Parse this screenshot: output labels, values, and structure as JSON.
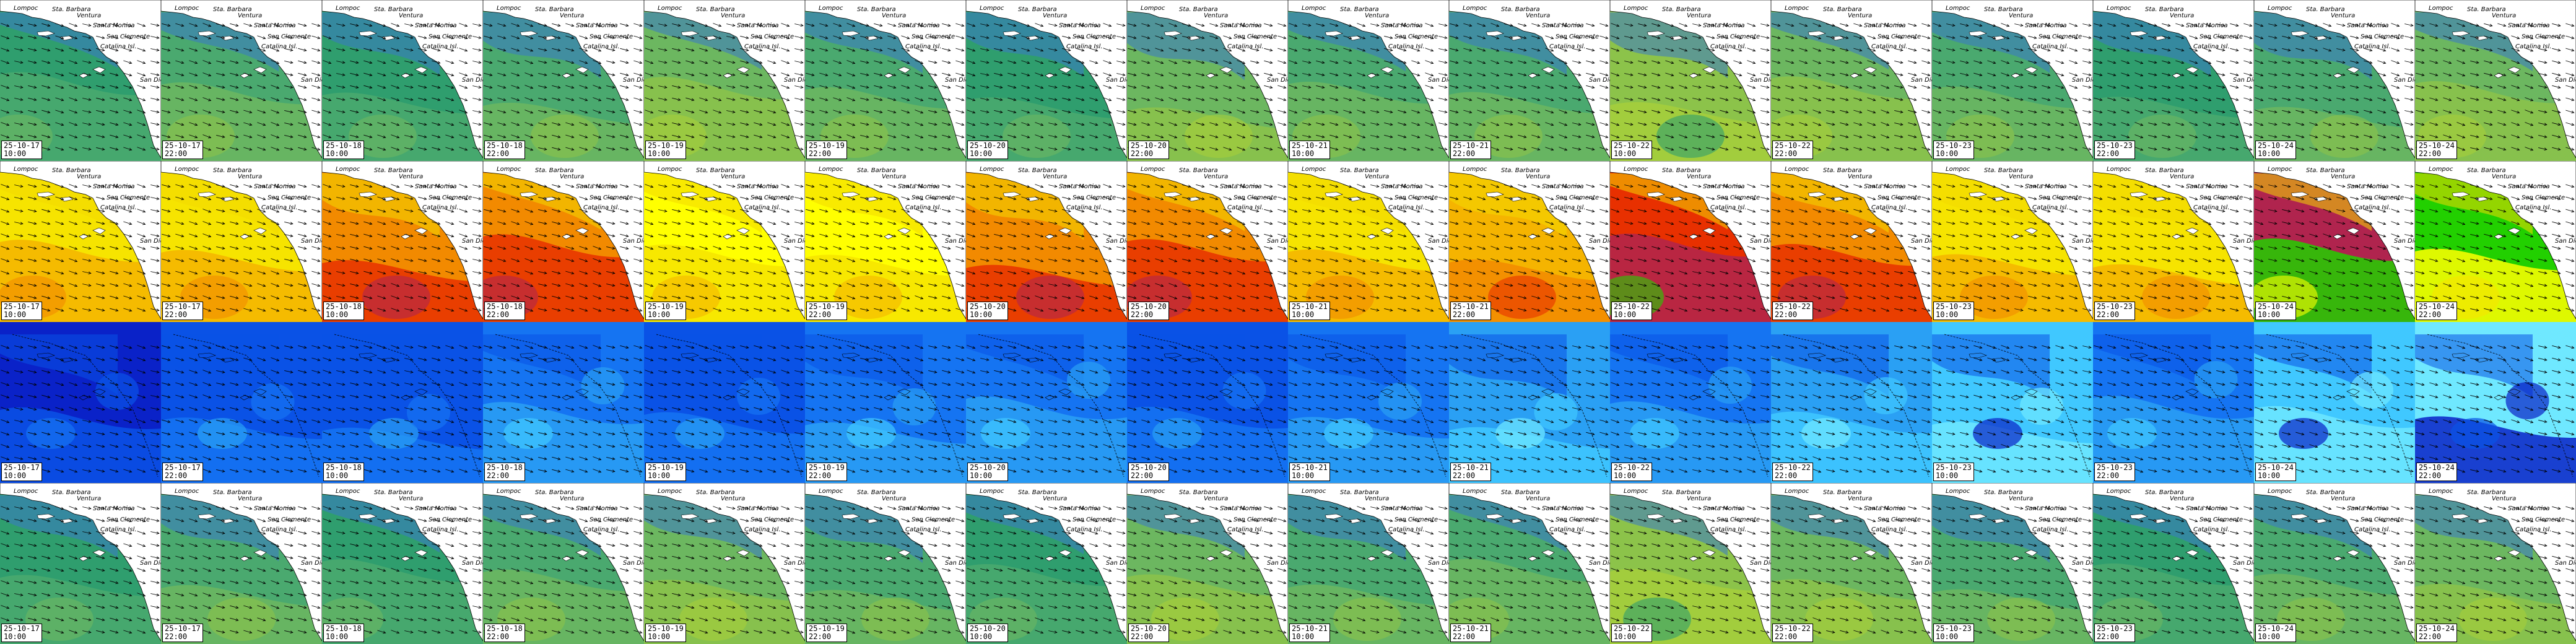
{
  "places": [
    {
      "id": "lompoc",
      "name": "Lompoc"
    },
    {
      "id": "santa-barbara",
      "name": "Sta. Barbara"
    },
    {
      "id": "ventura",
      "name": "Ventura"
    },
    {
      "id": "santa-monica",
      "name": "Santa Monica"
    },
    {
      "id": "san-clemente",
      "name": "San Clemente"
    },
    {
      "id": "catalina",
      "name": "Catalina Isl."
    },
    {
      "id": "san-diego",
      "name": "San Diego"
    }
  ],
  "rows": [
    {
      "id": "row-wind-speed",
      "palette": [
        "#2f9e6e",
        "#4aa96f",
        "#6cb760",
        "#8cc34a",
        "#a6cf3b"
      ],
      "ocean": "#3a78c8"
    },
    {
      "id": "row-wave-period",
      "palette": [
        "#ffff00",
        "#f6e400",
        "#f5b400",
        "#f28a00",
        "#e83000",
        "#b0244e",
        "#22d000"
      ],
      "ocean": "#f2d800"
    },
    {
      "id": "row-sea-temp",
      "palette": [
        "#0a22c8",
        "#0a52e6",
        "#1574f2",
        "#2aa0f4",
        "#40c8ff",
        "#6fe8ff"
      ],
      "ocean": "#0a52e6"
    },
    {
      "id": "row-swell",
      "palette": [
        "#2f9e6e",
        "#4aa96f",
        "#6cb760",
        "#8cc34a",
        "#a6cf3b"
      ],
      "ocean": "#3a78c8"
    }
  ],
  "timestamps": [
    {
      "date": "25-10-17",
      "time": "10:00"
    },
    {
      "date": "25-10-17",
      "time": "22:00"
    },
    {
      "date": "25-10-18",
      "time": "10:00"
    },
    {
      "date": "25-10-18",
      "time": "22:00"
    },
    {
      "date": "25-10-19",
      "time": "10:00"
    },
    {
      "date": "25-10-19",
      "time": "22:00"
    },
    {
      "date": "25-10-20",
      "time": "10:00"
    },
    {
      "date": "25-10-20",
      "time": "22:00"
    },
    {
      "date": "25-10-21",
      "time": "10:00"
    },
    {
      "date": "25-10-21",
      "time": "22:00"
    },
    {
      "date": "25-10-22",
      "time": "10:00"
    },
    {
      "date": "25-10-22",
      "time": "22:00"
    },
    {
      "date": "25-10-23",
      "time": "10:00"
    },
    {
      "date": "25-10-23",
      "time": "22:00"
    },
    {
      "date": "25-10-24",
      "time": "10:00"
    },
    {
      "date": "25-10-24",
      "time": "22:00"
    }
  ],
  "frames": [
    [
      0,
      1,
      0,
      1,
      2,
      1,
      0,
      2,
      1,
      1,
      3,
      2,
      1,
      0,
      1,
      2
    ],
    [
      1,
      1,
      3,
      3,
      0,
      0,
      3,
      3,
      1,
      2,
      4,
      3,
      1,
      1,
      5,
      6
    ],
    [
      0,
      1,
      1,
      2,
      1,
      2,
      2,
      1,
      2,
      3,
      2,
      3,
      4,
      2,
      4,
      5
    ],
    [
      0,
      1,
      0,
      1,
      2,
      1,
      0,
      2,
      1,
      1,
      3,
      2,
      1,
      0,
      1,
      2
    ]
  ],
  "colors": {
    "land": "#ffffff",
    "coast": "#000000",
    "arrow": "#000000"
  }
}
